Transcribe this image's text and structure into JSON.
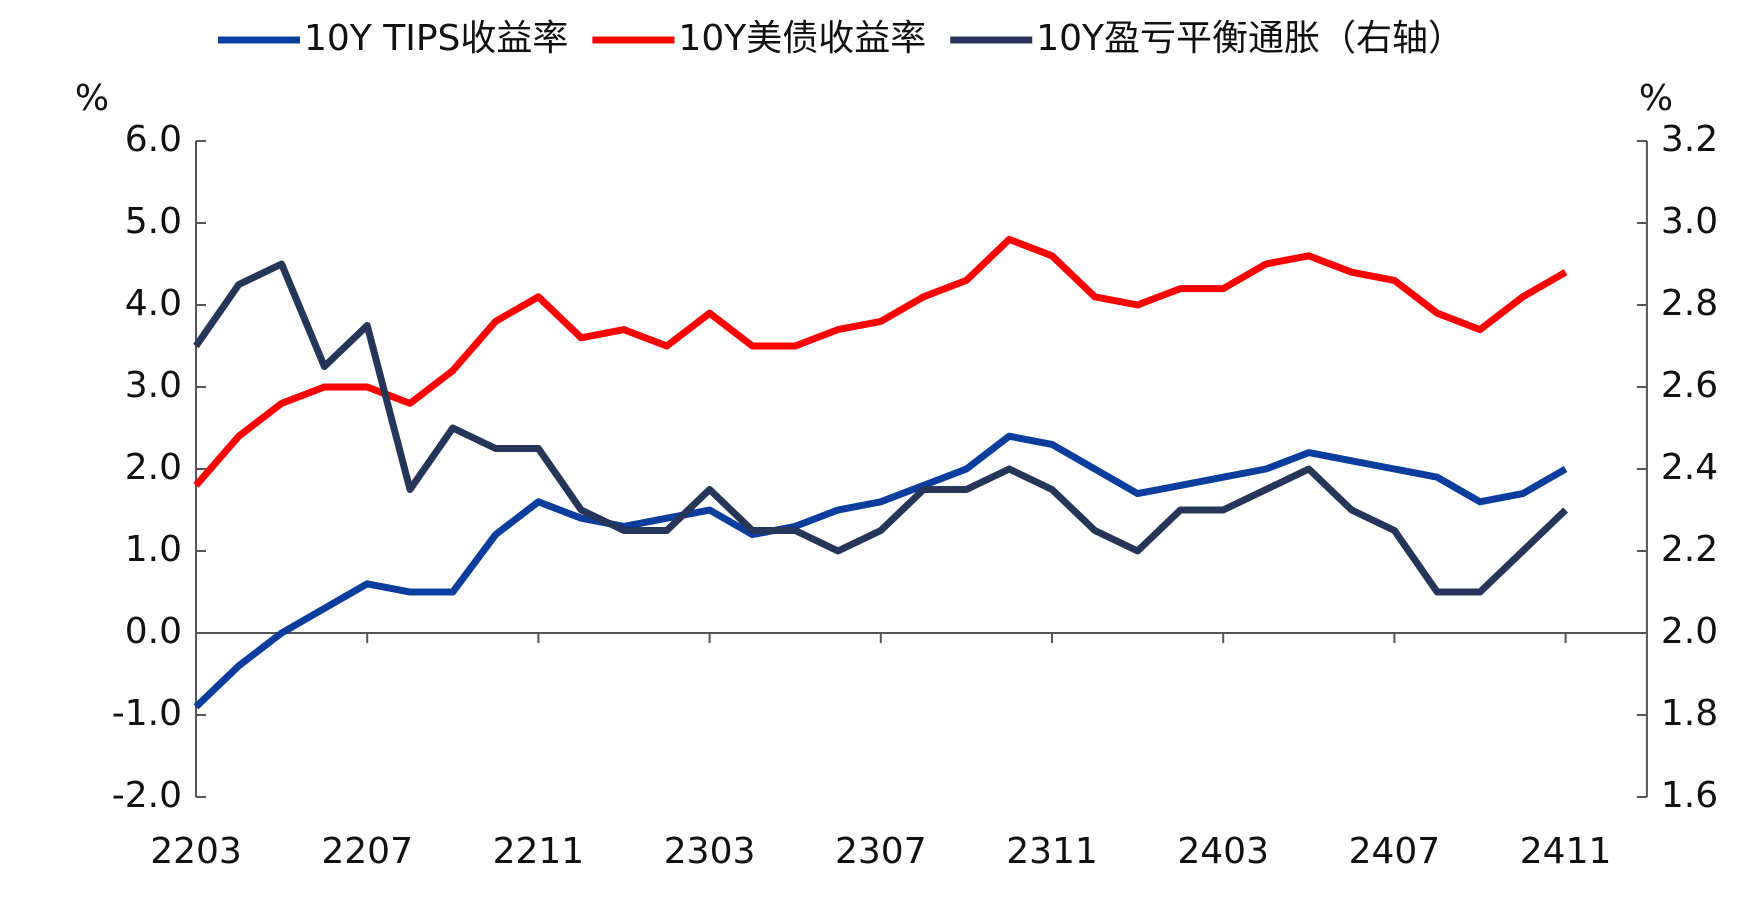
{
  "chart_data": {
    "type": "line",
    "y_unit": "%",
    "y2_unit": "%",
    "categories": [
      "2203",
      null,
      null,
      null,
      "2207",
      null,
      null,
      null,
      "2211",
      null,
      null,
      null,
      "2303",
      null,
      null,
      null,
      "2307",
      null,
      null,
      null,
      "2311",
      null,
      null,
      null,
      "2403",
      null,
      null,
      null,
      "2407",
      null,
      null,
      null,
      "2411"
    ],
    "series": [
      {
        "name": "10Y TIPS收益率",
        "color": "#0a3d9e",
        "values": [
          -0.9,
          -0.4,
          0.0,
          0.3,
          0.6,
          0.5,
          0.5,
          1.2,
          1.6,
          1.4,
          1.3,
          1.4,
          1.5,
          1.2,
          1.3,
          1.5,
          1.6,
          1.8,
          2.0,
          2.4,
          2.3,
          2.0,
          1.7,
          1.8,
          1.9,
          2.0,
          2.2,
          2.1,
          2.0,
          1.9,
          1.6,
          1.7,
          2.0
        ]
      },
      {
        "name": "10Y美债收益率",
        "color": "#ff0000",
        "values": [
          1.8,
          2.4,
          2.8,
          3.0,
          3.0,
          2.8,
          3.2,
          3.8,
          4.1,
          3.6,
          3.7,
          3.5,
          3.9,
          3.5,
          3.5,
          3.7,
          3.8,
          4.1,
          4.3,
          4.8,
          4.6,
          4.1,
          4.0,
          4.2,
          4.2,
          4.5,
          4.6,
          4.4,
          4.3,
          3.9,
          3.7,
          4.1,
          4.4
        ]
      },
      {
        "name": "10Y盈亏平衡通胀（右轴）",
        "color": "#263659",
        "axis": "y2",
        "values": [
          2.7,
          2.85,
          2.9,
          2.65,
          2.75,
          2.35,
          2.5,
          2.45,
          2.45,
          2.3,
          2.25,
          2.25,
          2.35,
          2.25,
          2.25,
          2.2,
          2.25,
          2.35,
          2.35,
          2.4,
          2.35,
          2.25,
          2.2,
          2.3,
          2.3,
          2.35,
          2.4,
          2.3,
          2.25,
          2.1,
          2.1,
          2.2,
          2.3
        ]
      }
    ],
    "ylim": [
      -2,
      6
    ],
    "yticks": [
      {
        "value": -2,
        "label": "-2.0"
      },
      {
        "value": -1,
        "label": "-1.0"
      },
      {
        "value": 0,
        "label": "0.0"
      },
      {
        "value": 1,
        "label": "1.0"
      },
      {
        "value": 2,
        "label": "2.0"
      },
      {
        "value": 3,
        "label": "3.0"
      },
      {
        "value": 4,
        "label": "4.0"
      },
      {
        "value": 5,
        "label": "5.0"
      },
      {
        "value": 6,
        "label": "6.0"
      }
    ],
    "y2lim": [
      1.6,
      3.2
    ],
    "y2ticks": [
      1.6,
      1.8,
      {
        "value": 2,
        "label": "2.0"
      },
      2.2,
      2.4,
      2.6,
      2.8,
      {
        "value": 3,
        "label": "3.0"
      },
      3.2
    ],
    "legend": "top",
    "grid": false
  }
}
